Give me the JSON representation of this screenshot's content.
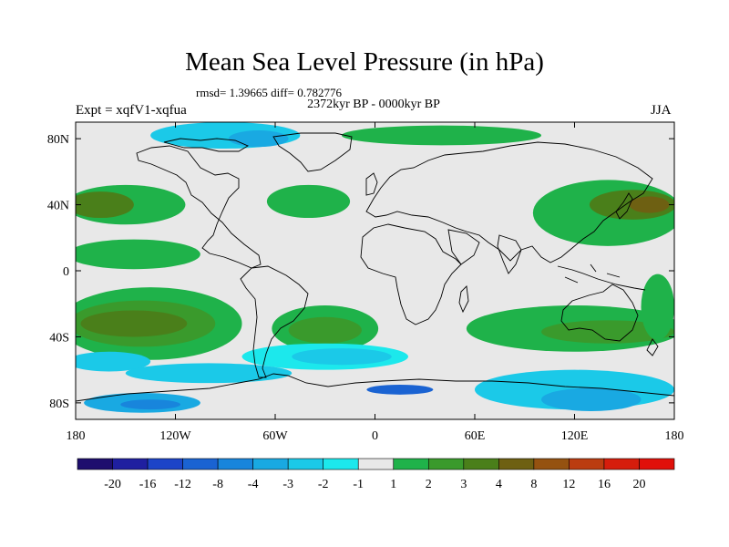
{
  "chart_data": {
    "type": "heatmap",
    "title": "Mean Sea Level Pressure (in hPa)",
    "stats": "rmsd= 1.39665 diff= 0.782776",
    "period": "2372kyr BP - 0000kyr BP",
    "experiment": "Expt = xqfV1-xqfua",
    "season": "JJA",
    "x_axis": {
      "range": [
        -180,
        180
      ],
      "ticks": [
        -180,
        -120,
        -60,
        0,
        60,
        120,
        180
      ],
      "tick_labels": [
        "180",
        "120W",
        "60W",
        "0",
        "60E",
        "120E",
        "180"
      ]
    },
    "y_axis": {
      "range": [
        -90,
        90
      ],
      "ticks": [
        80,
        40,
        0,
        -40,
        -80
      ],
      "tick_labels": [
        "80N",
        "40N",
        "0",
        "40S",
        "80S"
      ]
    },
    "colorbar": {
      "labels": [
        "-20",
        "-16",
        "-12",
        "-8",
        "-4",
        "-3",
        "-2",
        "-1",
        "1",
        "2",
        "3",
        "4",
        "8",
        "12",
        "16",
        "20"
      ],
      "colors": [
        "#1e0e6e",
        "#1f1fa0",
        "#1c44c8",
        "#1a63d2",
        "#1885dc",
        "#19a9e2",
        "#1bc9e8",
        "#1ce8ec",
        "#e8e8e8",
        "#1fb24a",
        "#3a9a2c",
        "#4a7f1a",
        "#6e6012",
        "#955210",
        "#bb3c10",
        "#d61d0c",
        "#e0100a"
      ]
    },
    "fields": [
      {
        "lon": -150,
        "lat": 40,
        "rlon": 36,
        "rlat": 12,
        "level": 1
      },
      {
        "lon": -165,
        "lat": 40,
        "rlon": 20,
        "rlat": 8,
        "level": 3
      },
      {
        "lon": -40,
        "lat": 42,
        "rlon": 25,
        "rlat": 10,
        "level": 1
      },
      {
        "lon": 140,
        "lat": 35,
        "rlon": 45,
        "rlat": 20,
        "level": 1
      },
      {
        "lon": 155,
        "lat": 40,
        "rlon": 26,
        "rlat": 9,
        "level": 3
      },
      {
        "lon": 165,
        "lat": 40,
        "rlon": 12,
        "rlat": 5,
        "level": 4
      },
      {
        "lon": 40,
        "lat": 82,
        "rlon": 60,
        "rlat": 6,
        "level": 1
      },
      {
        "lon": -145,
        "lat": 10,
        "rlon": 40,
        "rlat": 9,
        "level": 1
      },
      {
        "lon": -135,
        "lat": -32,
        "rlon": 55,
        "rlat": 22,
        "level": 1
      },
      {
        "lon": -140,
        "lat": -32,
        "rlon": 44,
        "rlat": 14,
        "level": 2
      },
      {
        "lon": -145,
        "lat": -32,
        "rlon": 32,
        "rlat": 8,
        "level": 3
      },
      {
        "lon": -30,
        "lat": -35,
        "rlon": 32,
        "rlat": 14,
        "level": 1
      },
      {
        "lon": -30,
        "lat": -36,
        "rlon": 22,
        "rlat": 8,
        "level": 2
      },
      {
        "lon": 120,
        "lat": -35,
        "rlon": 65,
        "rlat": 14,
        "level": 1
      },
      {
        "lon": 140,
        "lat": -37,
        "rlon": 40,
        "rlat": 7,
        "level": 2
      },
      {
        "lon": 170,
        "lat": -22,
        "rlon": 10,
        "rlat": 20,
        "level": 1
      },
      {
        "lon": -160,
        "lat": -55,
        "rlon": 25,
        "rlat": 6,
        "level": -2
      },
      {
        "lon": -30,
        "lat": -52,
        "rlon": 50,
        "rlat": 8,
        "level": -1
      },
      {
        "lon": -20,
        "lat": -52,
        "rlon": 30,
        "rlat": 5,
        "level": -2
      },
      {
        "lon": -100,
        "lat": -62,
        "rlon": 50,
        "rlat": 6,
        "level": -2
      },
      {
        "lon": -140,
        "lat": -80,
        "rlon": 35,
        "rlat": 6,
        "level": -3
      },
      {
        "lon": -135,
        "lat": -81,
        "rlon": 18,
        "rlat": 3,
        "level": -4
      },
      {
        "lon": 15,
        "lat": -72,
        "rlon": 20,
        "rlat": 3,
        "level": -5
      },
      {
        "lon": 120,
        "lat": -72,
        "rlon": 60,
        "rlat": 12,
        "level": -2
      },
      {
        "lon": 130,
        "lat": -78,
        "rlon": 30,
        "rlat": 7,
        "level": -3
      },
      {
        "lon": -90,
        "lat": 82,
        "rlon": 45,
        "rlat": 8,
        "level": -2
      },
      {
        "lon": -70,
        "lat": 80,
        "rlon": 18,
        "rlat": 5,
        "level": -3
      }
    ]
  }
}
